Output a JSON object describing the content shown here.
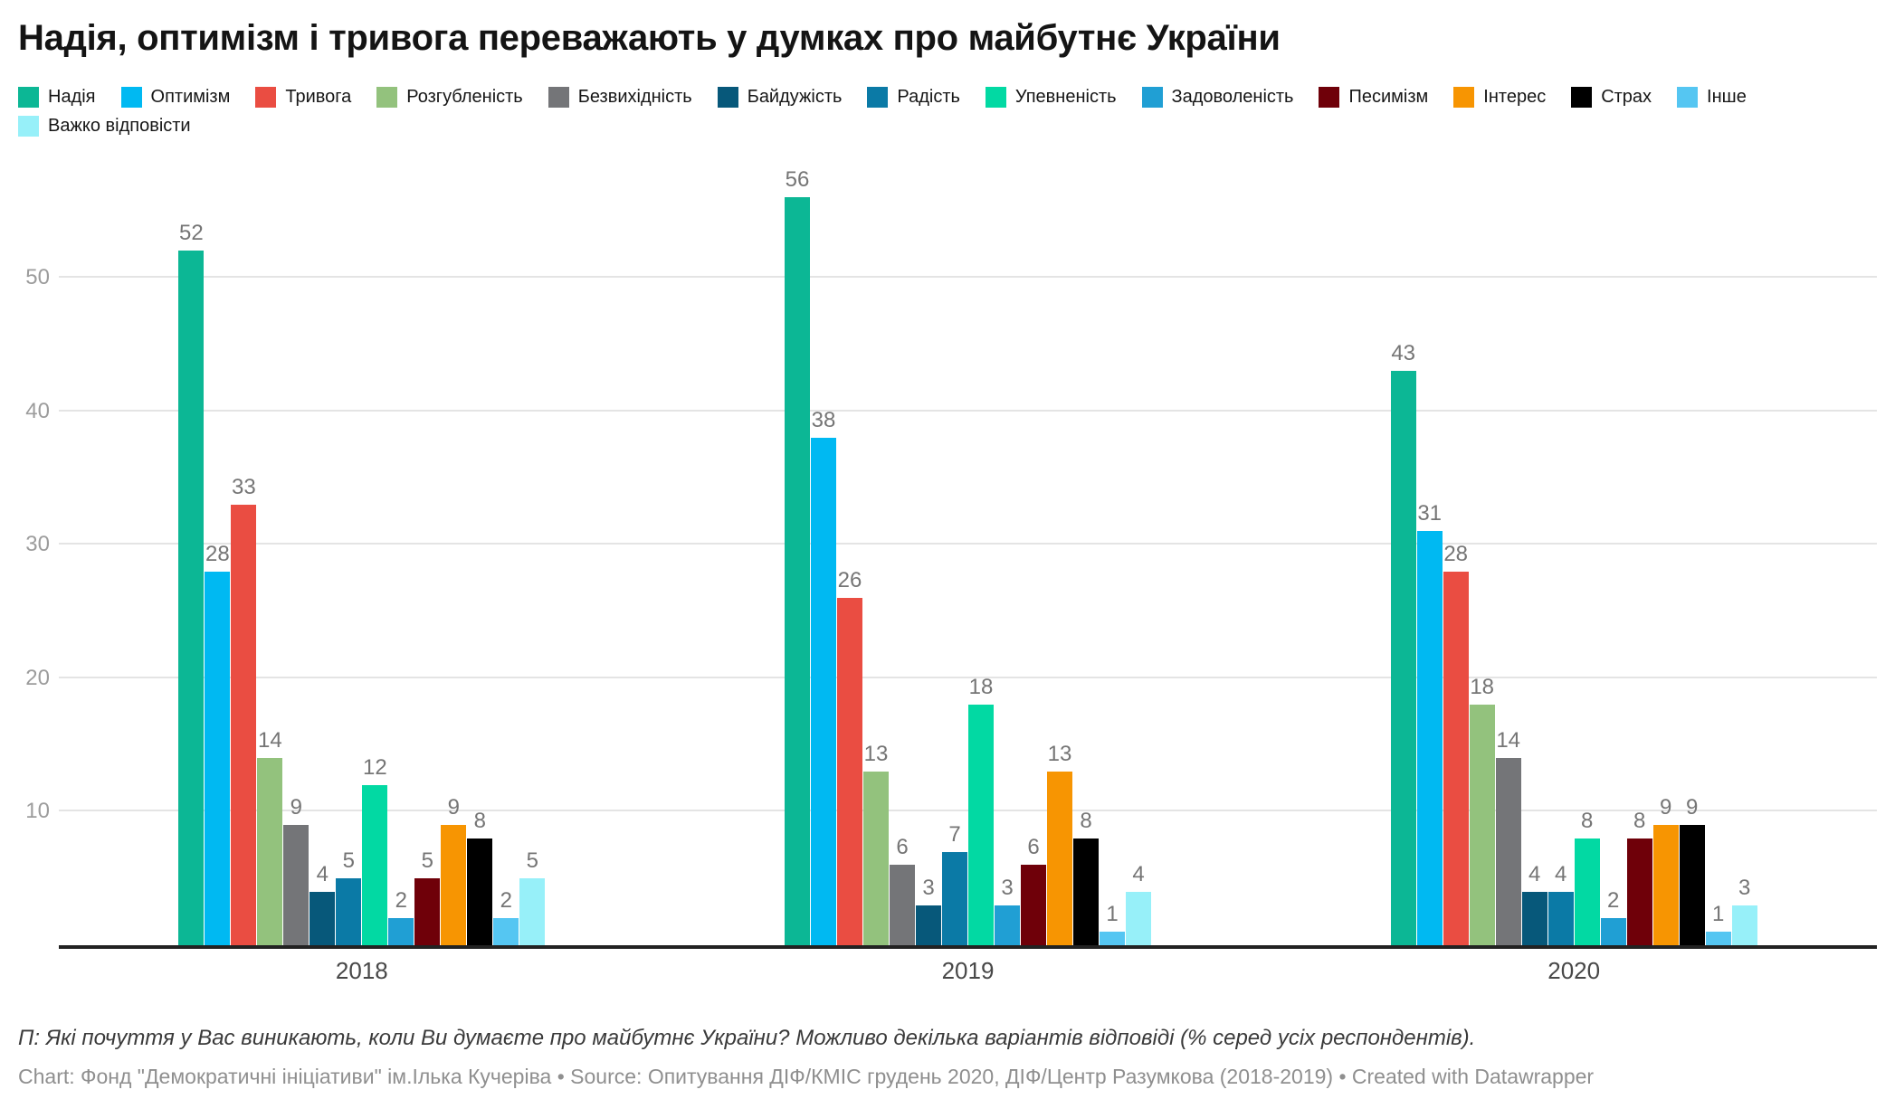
{
  "title": "Надія, оптимізм і тривога переважають у думках про майбутнє України",
  "legend": {
    "row_break": 13
  },
  "chart_data": {
    "type": "bar",
    "title": "Надія, оптимізм і тривога переважають у думках про майбутнє України",
    "categories": [
      "2018",
      "2019",
      "2020"
    ],
    "series": [
      {
        "name": "Надія",
        "color": "#0cb795",
        "values": [
          52,
          56,
          43
        ]
      },
      {
        "name": "Оптимізм",
        "color": "#00b9f2",
        "values": [
          28,
          38,
          31
        ]
      },
      {
        "name": "Тривога",
        "color": "#ea4d42",
        "values": [
          33,
          26,
          28
        ]
      },
      {
        "name": "Розгубленість",
        "color": "#93c27d",
        "values": [
          14,
          13,
          18
        ]
      },
      {
        "name": "Безвихідність",
        "color": "#747578",
        "values": [
          9,
          6,
          14
        ]
      },
      {
        "name": "Байдужість",
        "color": "#07587a",
        "values": [
          4,
          3,
          4
        ]
      },
      {
        "name": "Радість",
        "color": "#0b7aa6",
        "values": [
          5,
          7,
          4
        ]
      },
      {
        "name": "Упевненість",
        "color": "#02d9a3",
        "values": [
          12,
          18,
          8
        ]
      },
      {
        "name": "Задоволеність",
        "color": "#209fd4",
        "values": [
          2,
          3,
          2
        ]
      },
      {
        "name": "Песимізм",
        "color": "#6f0009",
        "values": [
          5,
          6,
          8
        ]
      },
      {
        "name": "Інтерес",
        "color": "#f79502",
        "values": [
          9,
          13,
          9
        ]
      },
      {
        "name": "Страх",
        "color": "#000000",
        "values": [
          8,
          8,
          9
        ]
      },
      {
        "name": "Інше",
        "color": "#55c6f2",
        "values": [
          2,
          1,
          1
        ]
      },
      {
        "name": "Важко відповісти",
        "color": "#97f0f9",
        "values": [
          5,
          4,
          3
        ]
      }
    ],
    "xlabel": "",
    "ylabel": "",
    "ylim": [
      0,
      56
    ],
    "yticks": [
      10,
      20,
      30,
      40,
      50
    ],
    "grid": true,
    "legend_position": "top",
    "value_labels": true
  },
  "footer": {
    "question": "П: Які почуття у Вас виникають, коли Ви думаєте про майбутнє України? Можливо декілька варіантів відповіді (% серед усіх респондентів).",
    "credit": "Chart: Фонд \"Демократичні ініціативи\" ім.Ілька Кучеріва • Source: Опитування ДІФ/КМІС грудень 2020, ДІФ/Центр Разумкова (2018-2019) • Created with Datawrapper"
  }
}
